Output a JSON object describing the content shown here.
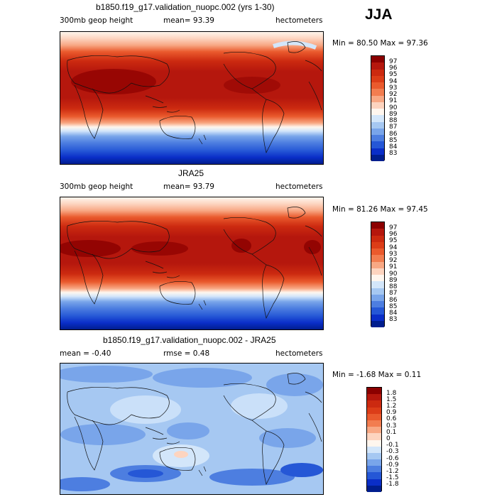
{
  "season": "JJA",
  "panels": [
    {
      "title": "b1850.f19_g17.validation_nuopc.002 (yrs 1-30)",
      "variable": "300mb geop height",
      "mean_text": "mean=   93.39",
      "units": "hectometers",
      "minmax": "Min =   80.50 Max =   97.36"
    },
    {
      "title": "JRA25",
      "variable": "300mb geop height",
      "mean_text": "mean=   93.79",
      "units": "hectometers",
      "minmax": "Min =   81.26 Max =   97.45"
    },
    {
      "title": "b1850.f19_g17.validation_nuopc.002 - JRA25",
      "variable": "mean =   -0.40",
      "mean_text": "rmse =   0.48",
      "units": "hectometers",
      "minmax": "Min =  -1.68 Max =    0.11"
    }
  ],
  "legend_abs": {
    "labels": [
      "97",
      "96",
      "95",
      "94",
      "93",
      "92",
      "91",
      "90",
      "89",
      "88",
      "87",
      "86",
      "85",
      "84",
      "83"
    ],
    "colors": [
      "#8b0000",
      "#b5170d",
      "#cc2a10",
      "#dc3d18",
      "#ea5a2d",
      "#f27d50",
      "#f8a884",
      "#fdd4bf",
      "#fff6ee",
      "#d3e6fa",
      "#a6c8f2",
      "#79a5ea",
      "#4d7ee0",
      "#2557d6",
      "#0a2ec8",
      "#001e8e"
    ]
  },
  "legend_diff": {
    "labels": [
      "1.8",
      "1.5",
      "1.2",
      "0.9",
      "0.6",
      "0.3",
      "0.1",
      "0",
      "-0.1",
      "-0.3",
      "-0.6",
      "-0.9",
      "-1.2",
      "-1.5",
      "-1.8"
    ],
    "colors": [
      "#8b0000",
      "#b5170d",
      "#cc2a10",
      "#dc3d18",
      "#ea5a2d",
      "#f27d50",
      "#f8a884",
      "#fdd4bf",
      "#fff6ee",
      "#d3e6fa",
      "#a6c8f2",
      "#79a5ea",
      "#4d7ee0",
      "#2557d6",
      "#0a2ec8",
      "#001e8e"
    ]
  }
}
